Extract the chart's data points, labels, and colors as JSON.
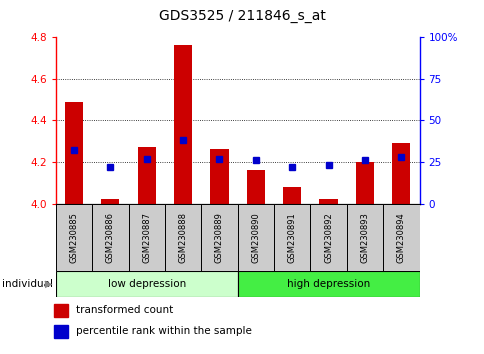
{
  "title": "GDS3525 / 211846_s_at",
  "samples": [
    "GSM230885",
    "GSM230886",
    "GSM230887",
    "GSM230888",
    "GSM230889",
    "GSM230890",
    "GSM230891",
    "GSM230892",
    "GSM230893",
    "GSM230894"
  ],
  "red_values": [
    4.49,
    4.02,
    4.27,
    4.76,
    4.26,
    4.16,
    4.08,
    4.02,
    4.2,
    4.29
  ],
  "blue_values_pct": [
    32,
    22,
    27,
    38,
    27,
    26,
    22,
    23,
    26,
    28
  ],
  "ylim_left": [
    4.0,
    4.8
  ],
  "ylim_right": [
    0,
    100
  ],
  "yticks_left": [
    4.0,
    4.2,
    4.4,
    4.6,
    4.8
  ],
  "yticks_right": [
    0,
    25,
    50,
    75,
    100
  ],
  "ytick_labels_right": [
    "0",
    "25",
    "50",
    "75",
    "100%"
  ],
  "group1_label": "low depression",
  "group2_label": "high depression",
  "individual_label": "individual",
  "legend1": "transformed count",
  "legend2": "percentile rank within the sample",
  "red_color": "#cc0000",
  "blue_color": "#0000cc",
  "group1_color": "#ccffcc",
  "group2_color": "#44ee44",
  "bar_bg_color": "#cccccc",
  "bar_width": 0.5
}
